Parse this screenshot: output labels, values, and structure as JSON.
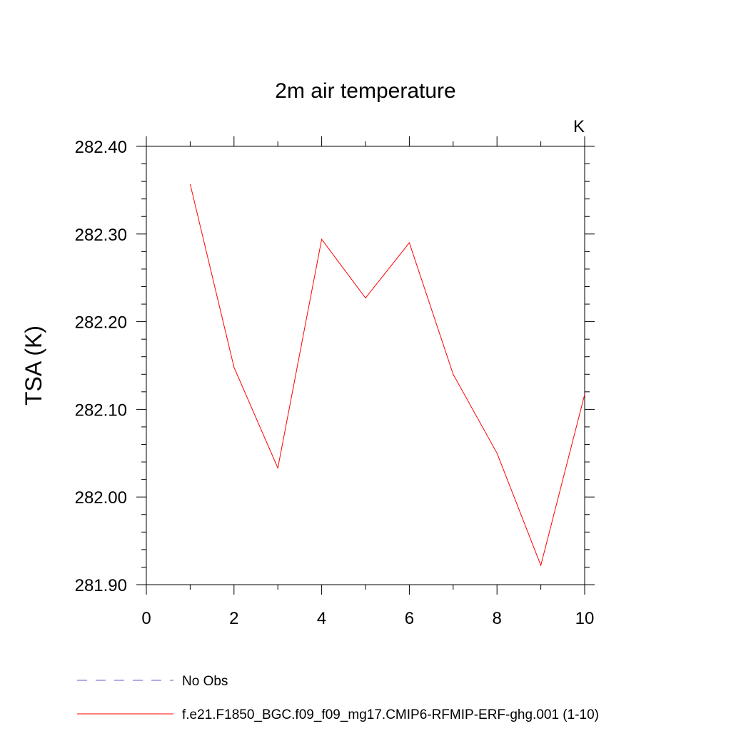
{
  "chart_data": {
    "type": "line",
    "title": "2m air temperature",
    "ylabel": "TSA  (K)",
    "units": "K",
    "xlim": [
      0,
      10
    ],
    "ylim": [
      281.9,
      282.4
    ],
    "xticks": [
      0,
      2,
      4,
      6,
      8,
      10
    ],
    "xtick_labels": [
      "0",
      "2",
      "4",
      "6",
      "8",
      "10"
    ],
    "yticks": [
      281.9,
      282.0,
      282.1,
      282.2,
      282.3,
      282.4
    ],
    "ytick_labels": [
      "281.90",
      "282.00",
      "282.10",
      "282.20",
      "282.30",
      "282.40"
    ],
    "grid": false,
    "legend_position": "bottom-left",
    "series": [
      {
        "name": "f.e21.F1850_BGC.f09_f09_mg17.CMIP6-RFMIP-ERF-ghg.001 (1-10)",
        "color": "#ff0000",
        "dash": "solid",
        "x": [
          1,
          2,
          3,
          4,
          5,
          6,
          7,
          8,
          9,
          10
        ],
        "y": [
          282.357,
          282.148,
          282.033,
          282.294,
          282.227,
          282.29,
          282.14,
          282.05,
          281.922,
          282.117
        ]
      }
    ],
    "legend": [
      {
        "label": "No Obs",
        "color": "#6a5acd",
        "dash": "dashed"
      },
      {
        "label": "f.e21.F1850_BGC.f09_f09_mg17.CMIP6-RFMIP-ERF-ghg.001 (1-10)",
        "color": "#ff0000",
        "dash": "solid"
      }
    ]
  }
}
